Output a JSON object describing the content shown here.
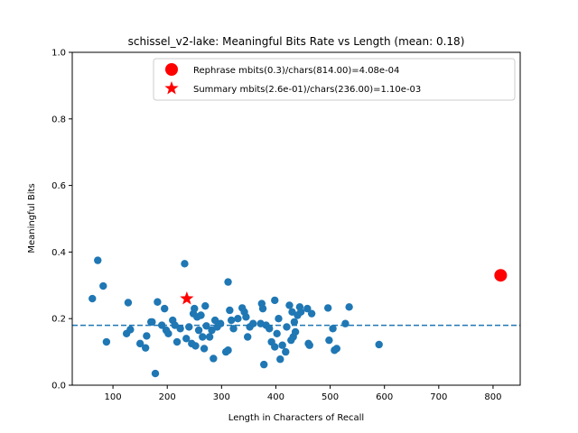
{
  "chart_data": {
    "type": "scatter",
    "title": "schissel_v2-lake: Meaningful Bits Rate vs Length (mean: 0.18)",
    "xlabel": "Length in Characters of Recall",
    "ylabel": "Meaningful Bits",
    "xlim": [
      25,
      850
    ],
    "ylim": [
      0.0,
      1.0
    ],
    "xticks": [
      100,
      200,
      300,
      400,
      500,
      600,
      700,
      800
    ],
    "yticks": [
      0.0,
      0.2,
      0.4,
      0.6,
      0.8,
      1.0
    ],
    "mean_line": 0.18,
    "colors": {
      "points": "#1f77b4",
      "mean": "#1f77b4",
      "highlight": "#ff0000"
    },
    "legend_position": "top-right",
    "series": [
      {
        "type": "scatter",
        "points": [
          [
            62,
            0.26
          ],
          [
            72,
            0.375
          ],
          [
            82,
            0.298
          ],
          [
            88,
            0.13
          ],
          [
            125,
            0.155
          ],
          [
            128,
            0.248
          ],
          [
            132,
            0.167
          ],
          [
            150,
            0.125
          ],
          [
            160,
            0.112
          ],
          [
            162,
            0.148
          ],
          [
            170,
            0.19
          ],
          [
            172,
            0.19
          ],
          [
            178,
            0.035
          ],
          [
            182,
            0.25
          ],
          [
            190,
            0.18
          ],
          [
            195,
            0.23
          ],
          [
            198,
            0.165
          ],
          [
            202,
            0.155
          ],
          [
            210,
            0.195
          ],
          [
            214,
            0.18
          ],
          [
            218,
            0.13
          ],
          [
            224,
            0.17
          ],
          [
            232,
            0.365
          ],
          [
            235,
            0.14
          ],
          [
            240,
            0.175
          ],
          [
            245,
            0.125
          ],
          [
            248,
            0.215
          ],
          [
            250,
            0.23
          ],
          [
            252,
            0.118
          ],
          [
            255,
            0.205
          ],
          [
            258,
            0.165
          ],
          [
            262,
            0.21
          ],
          [
            265,
            0.145
          ],
          [
            268,
            0.11
          ],
          [
            270,
            0.238
          ],
          [
            272,
            0.178
          ],
          [
            278,
            0.145
          ],
          [
            282,
            0.165
          ],
          [
            285,
            0.08
          ],
          [
            288,
            0.195
          ],
          [
            292,
            0.175
          ],
          [
            298,
            0.185
          ],
          [
            308,
            0.1
          ],
          [
            312,
            0.105
          ],
          [
            312,
            0.31
          ],
          [
            315,
            0.225
          ],
          [
            318,
            0.195
          ],
          [
            322,
            0.17
          ],
          [
            330,
            0.2
          ],
          [
            338,
            0.232
          ],
          [
            342,
            0.22
          ],
          [
            345,
            0.205
          ],
          [
            348,
            0.145
          ],
          [
            352,
            0.175
          ],
          [
            358,
            0.185
          ],
          [
            372,
            0.185
          ],
          [
            374,
            0.245
          ],
          [
            376,
            0.23
          ],
          [
            378,
            0.062
          ],
          [
            382,
            0.18
          ],
          [
            388,
            0.17
          ],
          [
            392,
            0.13
          ],
          [
            398,
            0.115
          ],
          [
            398,
            0.255
          ],
          [
            402,
            0.155
          ],
          [
            405,
            0.2
          ],
          [
            408,
            0.078
          ],
          [
            412,
            0.12
          ],
          [
            418,
            0.1
          ],
          [
            420,
            0.175
          ],
          [
            425,
            0.24
          ],
          [
            428,
            0.135
          ],
          [
            430,
            0.22
          ],
          [
            432,
            0.145
          ],
          [
            434,
            0.19
          ],
          [
            436,
            0.16
          ],
          [
            440,
            0.21
          ],
          [
            444,
            0.235
          ],
          [
            446,
            0.22
          ],
          [
            458,
            0.23
          ],
          [
            460,
            0.125
          ],
          [
            462,
            0.12
          ],
          [
            466,
            0.215
          ],
          [
            496,
            0.232
          ],
          [
            498,
            0.135
          ],
          [
            505,
            0.17
          ],
          [
            508,
            0.105
          ],
          [
            512,
            0.11
          ],
          [
            528,
            0.185
          ],
          [
            535,
            0.235
          ],
          [
            590,
            0.122
          ]
        ]
      },
      {
        "type": "highlight-circle",
        "name": "Rephrase mbits(0.3)/chars(814.00)=4.08e-04",
        "points": [
          [
            814,
            0.33
          ]
        ]
      },
      {
        "type": "highlight-star",
        "name": "Summary mbits(2.6e-01)/chars(236.00)=1.10e-03",
        "points": [
          [
            236,
            0.26
          ]
        ]
      }
    ]
  }
}
